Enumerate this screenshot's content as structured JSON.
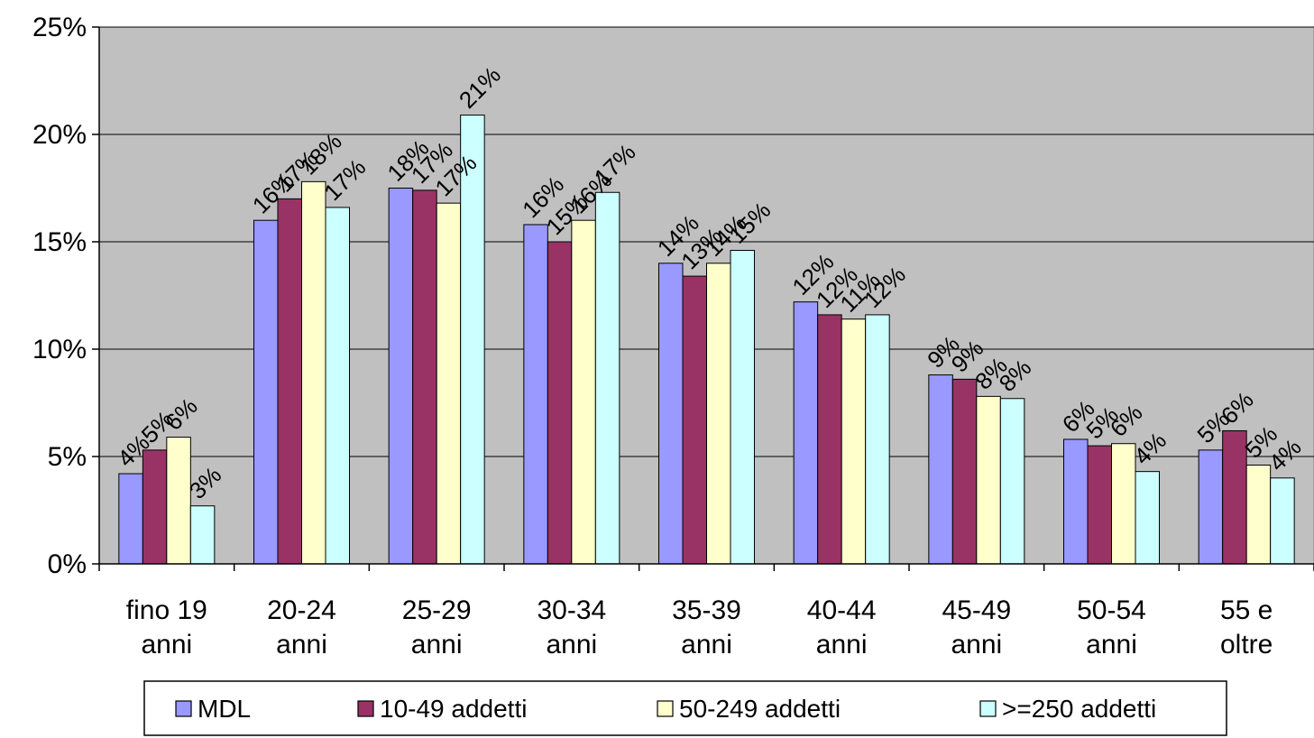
{
  "chart_data": {
    "type": "bar",
    "title": "",
    "xlabel": "",
    "ylabel": "",
    "categories": [
      [
        "fino 19",
        "anni"
      ],
      [
        "20-24",
        "anni"
      ],
      [
        "25-29",
        "anni"
      ],
      [
        "30-34",
        "anni"
      ],
      [
        "35-39",
        "anni"
      ],
      [
        "40-44",
        "anni"
      ],
      [
        "45-49",
        "anni"
      ],
      [
        "50-54",
        "anni"
      ],
      [
        "55 e",
        "oltre"
      ]
    ],
    "series": [
      {
        "name": "MDL",
        "color": "#9999ff",
        "values": [
          4.2,
          16.0,
          17.5,
          15.8,
          14.0,
          12.2,
          8.8,
          5.8,
          5.3
        ],
        "labels": [
          "4%",
          "16%",
          "18%",
          "16%",
          "14%",
          "12%",
          "9%",
          "6%",
          "5%"
        ]
      },
      {
        "name": "10-49 addetti",
        "color": "#993366",
        "values": [
          5.3,
          17.0,
          17.4,
          15.0,
          13.4,
          11.6,
          8.6,
          5.5,
          6.2
        ],
        "labels": [
          "5%",
          "17%",
          "17%",
          "15%",
          "13%",
          "12%",
          "9%",
          "5%",
          "6%"
        ]
      },
      {
        "name": "50-249 addetti",
        "color": "#ffffcc",
        "values": [
          5.9,
          17.8,
          16.8,
          16.0,
          14.0,
          11.4,
          7.8,
          5.6,
          4.6
        ],
        "labels": [
          "6%",
          "18%",
          "17%",
          "16%",
          "14%",
          "11%",
          "8%",
          "6%",
          "5%"
        ]
      },
      {
        "name": ">=250 addetti",
        "color": "#ccffff",
        "values": [
          2.7,
          16.6,
          20.9,
          17.3,
          14.6,
          11.6,
          7.7,
          4.3,
          4.0
        ],
        "labels": [
          "3%",
          "17%",
          "21%",
          "17%",
          "15%",
          "12%",
          "8%",
          "4%",
          "4%"
        ]
      }
    ],
    "ylim": [
      0,
      25
    ],
    "yticks": [
      0,
      5,
      10,
      15,
      20,
      25
    ],
    "ytick_labels": [
      "0%",
      "5%",
      "10%",
      "15%",
      "20%",
      "25%"
    ],
    "grid": true,
    "legend": {
      "position": "bottom"
    },
    "plot_background": "#c0c0c0"
  }
}
